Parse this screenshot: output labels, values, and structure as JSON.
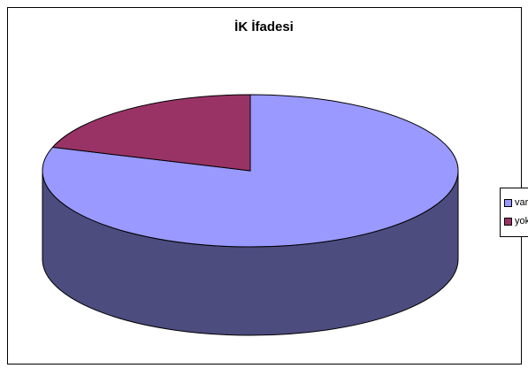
{
  "chart_data": {
    "type": "pie",
    "title": "İK İfadesi",
    "style": "3d",
    "categories": [
      "var",
      "yok"
    ],
    "values": [
      80,
      20
    ],
    "colors": [
      "#9999FF",
      "#993366"
    ],
    "side_colors": [
      "#4C4C7F",
      "#4C1933"
    ],
    "legend": {
      "position": "right",
      "entries": [
        {
          "label": "var",
          "color": "#9999FF"
        },
        {
          "label": "yok",
          "color": "#993366"
        }
      ]
    }
  }
}
